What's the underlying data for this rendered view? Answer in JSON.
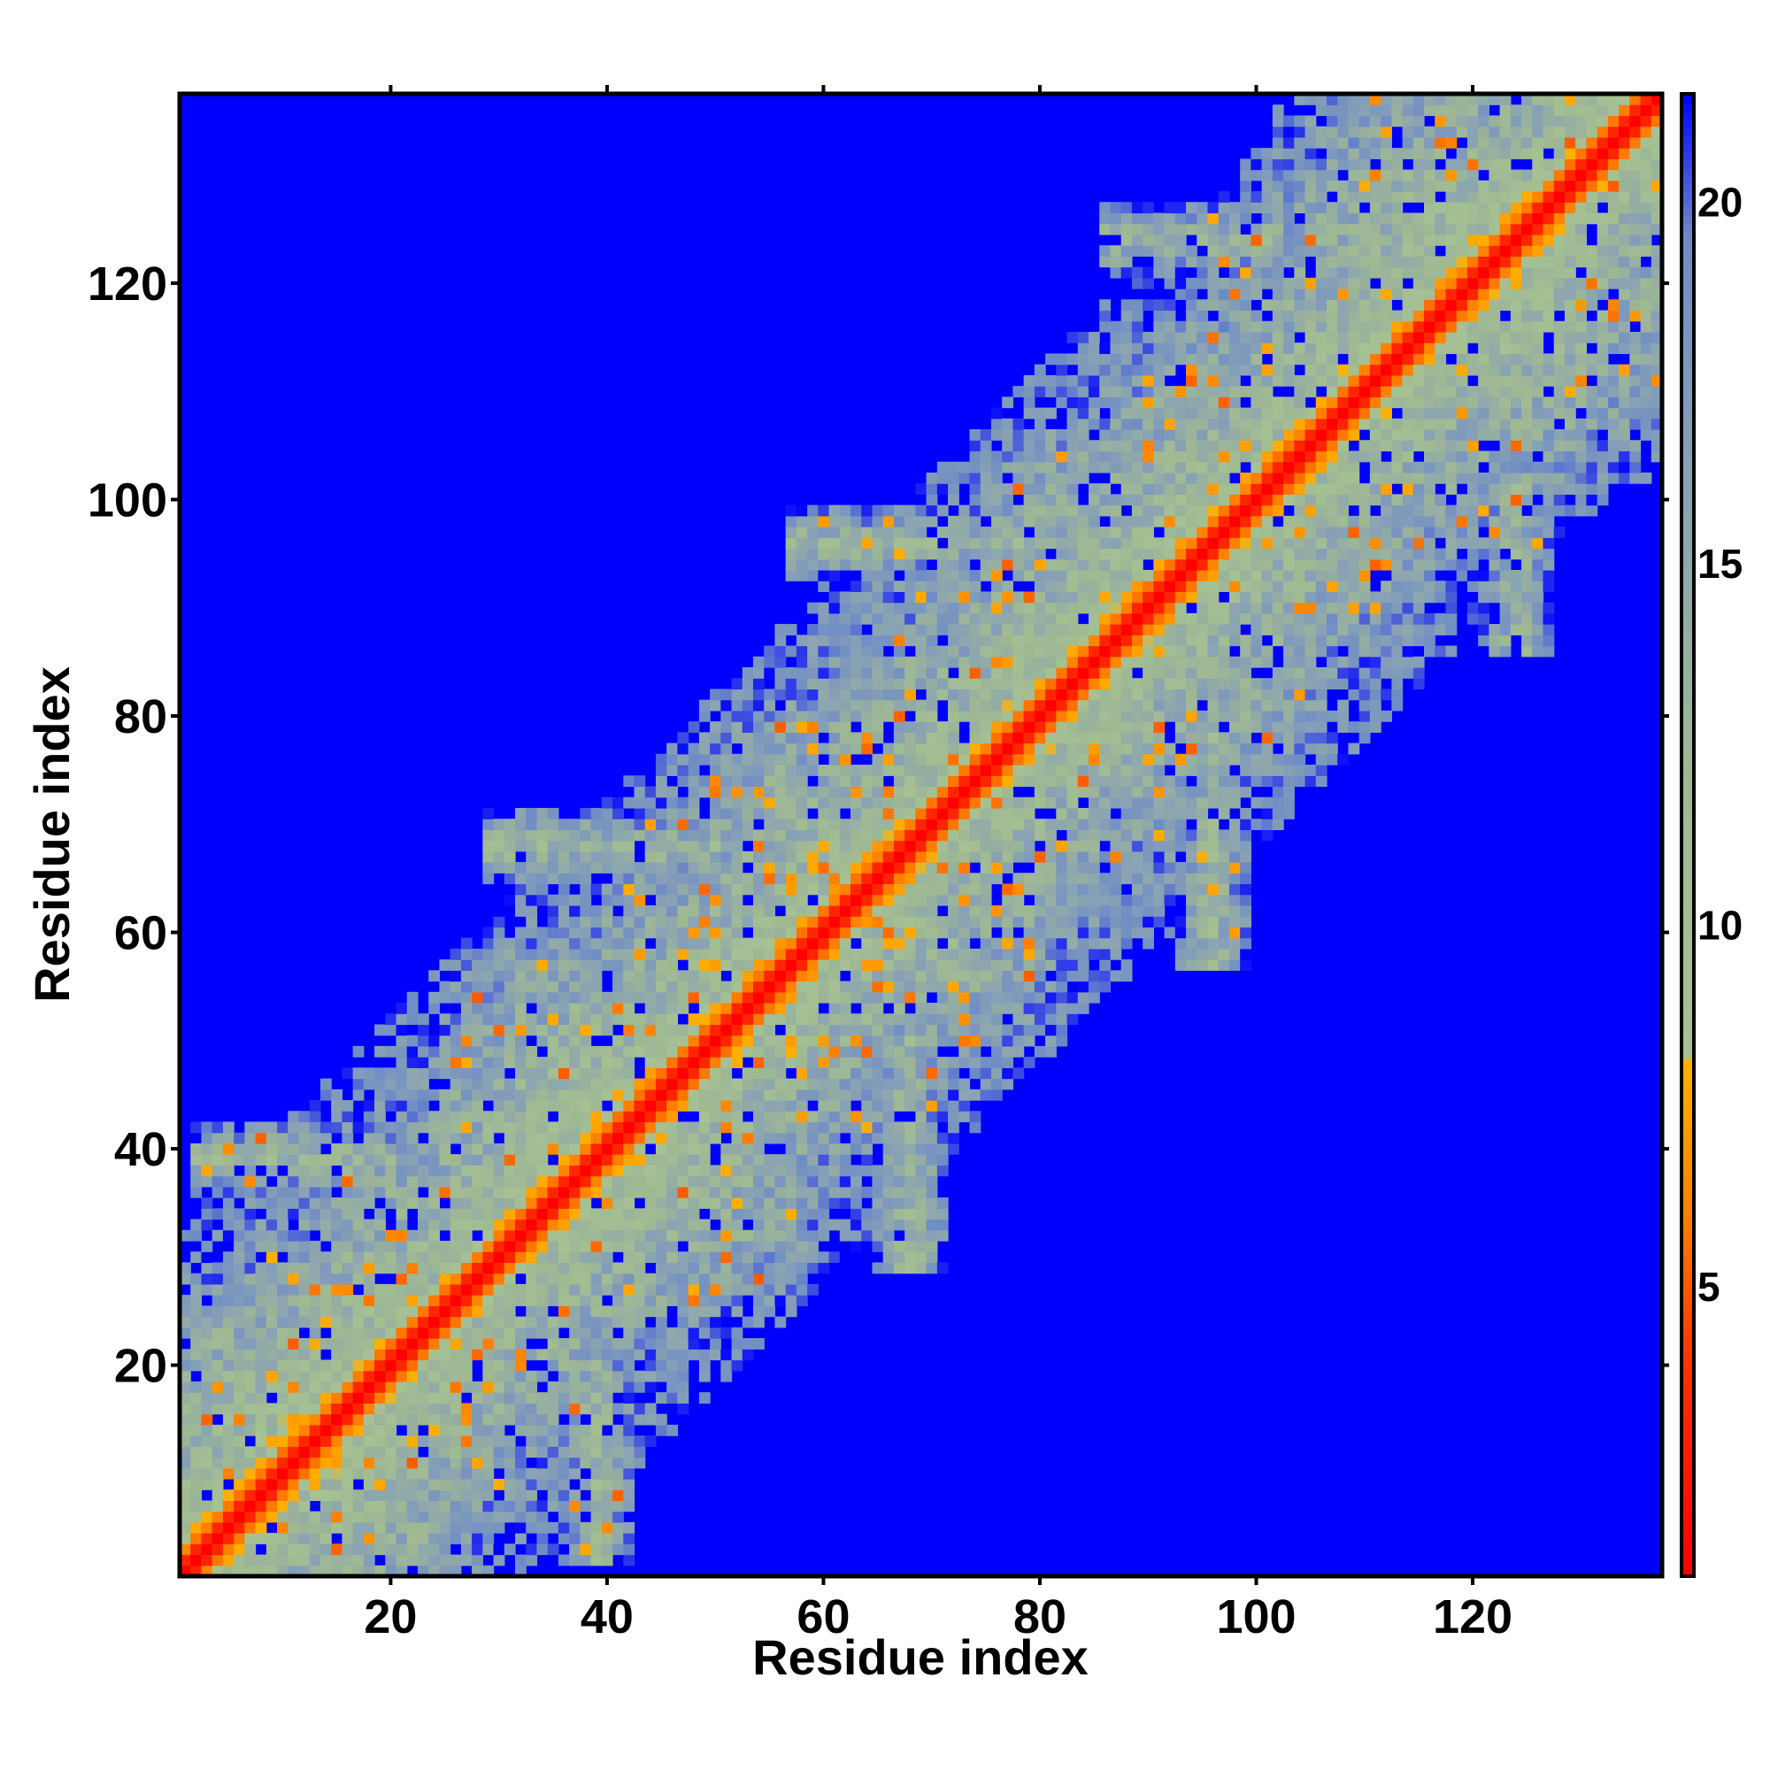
{
  "chart_data": {
    "type": "heatmap",
    "title": "",
    "xlabel": "Residue index",
    "ylabel": "Residue index",
    "n_residues": 137,
    "xlim": [
      1,
      137
    ],
    "ylim": [
      1,
      137
    ],
    "x_ticks": [
      20,
      40,
      60,
      80,
      100,
      120
    ],
    "y_ticks": [
      20,
      40,
      60,
      80,
      100,
      120
    ],
    "grid": false,
    "legend": "colorbar-right",
    "colorbar": {
      "range": [
        1,
        21.5
      ],
      "ticks": [
        5,
        10,
        15,
        20
      ],
      "stops": [
        {
          "value": 1,
          "color": "#ff0000"
        },
        {
          "value": 4,
          "color": "#ff3300"
        },
        {
          "value": 6,
          "color": "#ff8000"
        },
        {
          "value": 8.1,
          "color": "#ffb000"
        },
        {
          "value": 8.2,
          "color": "#a6c293"
        },
        {
          "value": 12,
          "color": "#9fb894"
        },
        {
          "value": 16,
          "color": "#8aa3b3"
        },
        {
          "value": 19.5,
          "color": "#6f8cc6"
        },
        {
          "value": 21.5,
          "color": "#0000ff"
        }
      ]
    },
    "values_description_free": true,
    "cutoff": 20,
    "background_color": "#0000ff",
    "diagonal_color": "#ff0000",
    "structure": {
      "domains": [
        {
          "center": 12,
          "halfwidth": 14,
          "strength": 1.0
        },
        {
          "center": 42,
          "halfwidth": 16,
          "strength": 1.0
        },
        {
          "center": 65,
          "halfwidth": 16,
          "strength": 0.9
        },
        {
          "center": 90,
          "halfwidth": 16,
          "strength": 0.9
        },
        {
          "center": 120,
          "halfwidth": 18,
          "strength": 1.0
        }
      ],
      "arms": [
        {
          "row": 39,
          "from": 2,
          "to": 20
        },
        {
          "row": 68,
          "from": 29,
          "to": 50
        },
        {
          "row": 96,
          "from": 57,
          "to": 85
        },
        {
          "row": 124,
          "from": 86,
          "to": 102
        },
        {
          "col": 39,
          "from": 2,
          "to": 18
        },
        {
          "col": 67,
          "from": 28,
          "to": 46
        },
        {
          "col": 95,
          "from": 58,
          "to": 80
        },
        {
          "col": 121,
          "from": 86,
          "to": 105
        }
      ]
    }
  }
}
